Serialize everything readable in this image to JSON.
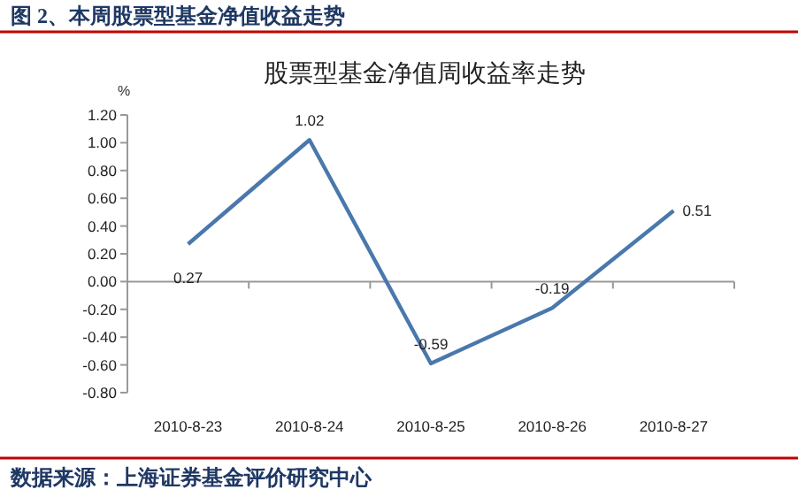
{
  "chart_data": {
    "type": "line",
    "title": "股票型基金净值周收益率走势",
    "ylabel": "%",
    "annotations": [
      "图 2、本周股票型基金净值收益走势",
      "数据来源：上海证券基金评价研究中心"
    ],
    "categories": [
      "2010-8-23",
      "2010-8-24",
      "2010-8-25",
      "2010-8-26",
      "2010-8-27"
    ],
    "series": [
      {
        "color": "#4a78ac",
        "values": [
          0.27,
          1.02,
          -0.59,
          -0.19,
          0.51
        ]
      }
    ],
    "data_labels": true,
    "marker": "none",
    "ylim": [
      -0.8,
      1.2
    ],
    "yticks": [
      {
        "value": -0.8,
        "label": "-0.80"
      },
      {
        "value": -0.6,
        "label": "-0.60"
      },
      {
        "value": -0.4,
        "label": "-0.40"
      },
      {
        "value": -0.2,
        "label": "-0.20"
      },
      {
        "value": 0,
        "label": "0.00"
      },
      {
        "value": 0.2,
        "label": "0.20"
      },
      {
        "value": 0.4,
        "label": "0.40"
      },
      {
        "value": 0.6,
        "label": "0.60"
      },
      {
        "value": 0.8,
        "label": "0.80"
      },
      {
        "value": 1,
        "label": "1.00"
      },
      {
        "value": 1.2,
        "label": "1.20"
      }
    ]
  }
}
